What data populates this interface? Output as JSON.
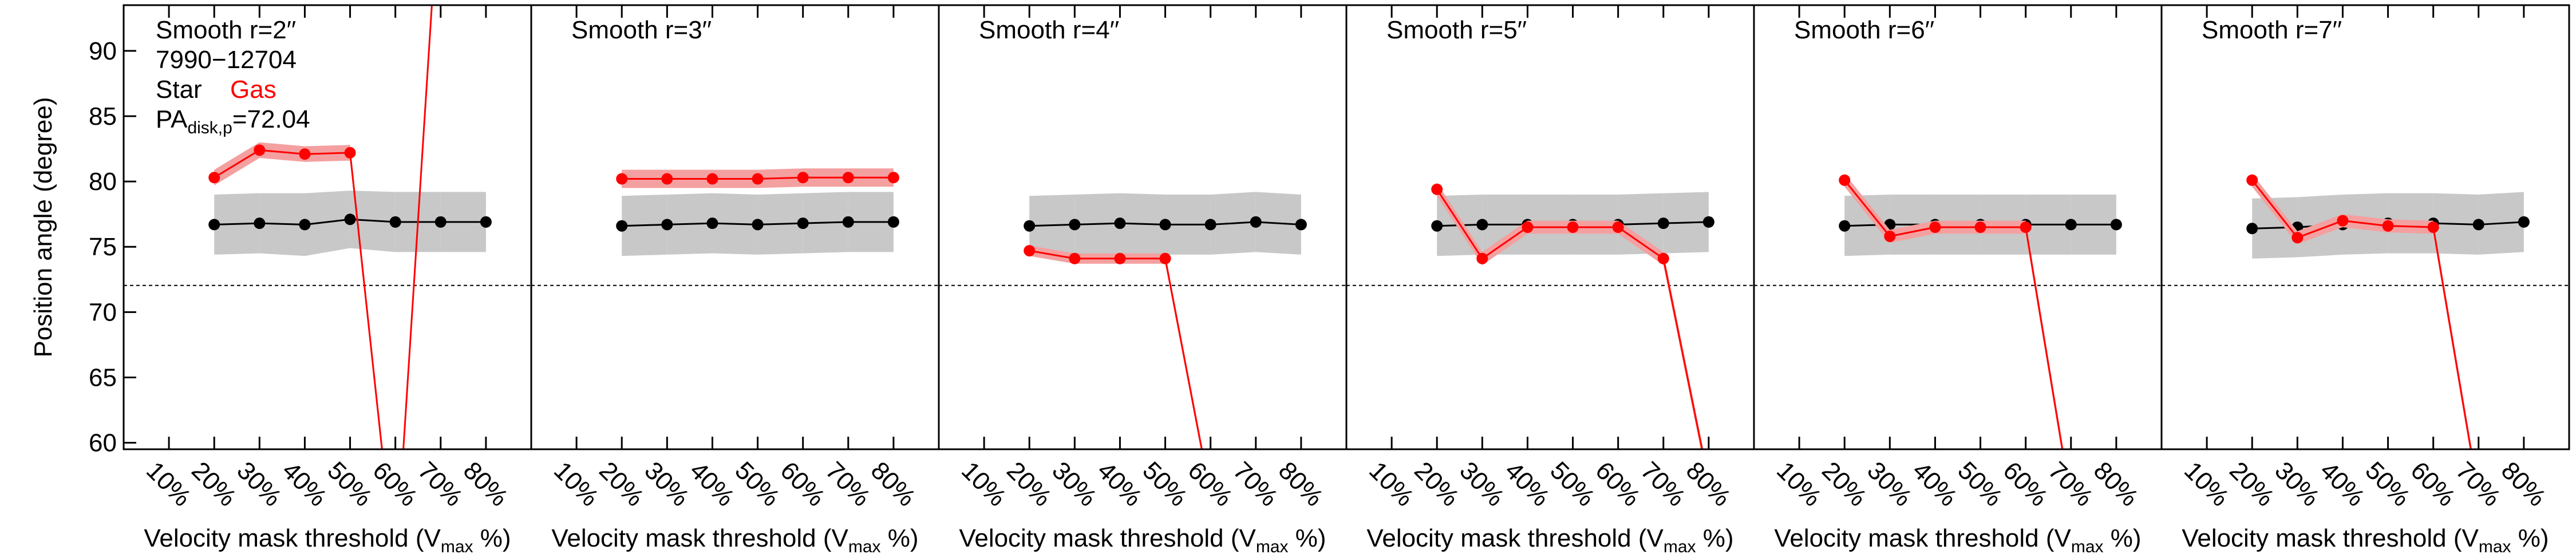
{
  "chart_data": [
    {
      "type": "line",
      "title": "Smooth r=2′′",
      "ylabel": "Position angle (degree)",
      "annotations": [
        "7990−12704"
      ],
      "pa_label": {
        "text": "PA",
        "subscript": "disk,p",
        "value_text": "=72.04"
      },
      "reference_line": 72.04,
      "xlabel": {
        "text": "Velocity mask threshold (V",
        "subscript": "max",
        "suffix": " %)"
      },
      "x": [
        20,
        30,
        40,
        50,
        60,
        70,
        80
      ],
      "series": [
        {
          "name": "Star",
          "color": "#000000",
          "band_color": "#c8c8c8",
          "values": [
            76.7,
            76.8,
            76.7,
            77.1,
            76.9,
            76.9,
            76.9
          ],
          "error": [
            2.3,
            2.3,
            2.4,
            2.2,
            2.3,
            2.3,
            2.3
          ]
        },
        {
          "name": "Gas",
          "color": "#ff0000",
          "band_color": "#f4a0a0",
          "values": [
            80.3,
            82.4,
            82.1,
            82.2,
            50,
            104,
            null
          ],
          "error": [
            0.6,
            0.6,
            0.6,
            0.6,
            0.6,
            0.6,
            null
          ]
        }
      ],
      "xlim": [
        0,
        90
      ],
      "ylim": [
        59.5,
        93.5
      ],
      "xticks": [
        {
          "value": 10,
          "label": "10%"
        },
        {
          "value": 20,
          "label": "20%"
        },
        {
          "value": 30,
          "label": "30%"
        },
        {
          "value": 40,
          "label": "40%"
        },
        {
          "value": 50,
          "label": "50%"
        },
        {
          "value": 60,
          "label": "60%"
        },
        {
          "value": 70,
          "label": "70%"
        },
        {
          "value": 80,
          "label": "80%"
        }
      ],
      "yticks": [
        60,
        65,
        70,
        75,
        80,
        85,
        90
      ]
    },
    {
      "type": "line",
      "title": "Smooth r=3′′",
      "reference_line": 72.04,
      "xlabel": {
        "text": "Velocity mask threshold (V",
        "subscript": "max",
        "suffix": " %)"
      },
      "x": [
        20,
        30,
        40,
        50,
        60,
        70,
        80
      ],
      "series": [
        {
          "color": "#000000",
          "band_color": "#c8c8c8",
          "values": [
            76.6,
            76.7,
            76.8,
            76.7,
            76.8,
            76.9,
            76.9
          ],
          "error": [
            2.3,
            2.3,
            2.3,
            2.3,
            2.3,
            2.3,
            2.3
          ]
        },
        {
          "color": "#ff0000",
          "band_color": "#f4a0a0",
          "values": [
            80.2,
            80.2,
            80.2,
            80.2,
            80.3,
            80.3,
            80.3
          ],
          "error": [
            0.7,
            0.7,
            0.7,
            0.7,
            0.7,
            0.7,
            0.7
          ]
        }
      ],
      "xlim": [
        0,
        90
      ],
      "ylim": [
        59.5,
        93.5
      ],
      "xticks": [
        {
          "value": 10,
          "label": "10%"
        },
        {
          "value": 20,
          "label": "20%"
        },
        {
          "value": 30,
          "label": "30%"
        },
        {
          "value": 40,
          "label": "40%"
        },
        {
          "value": 50,
          "label": "50%"
        },
        {
          "value": 60,
          "label": "60%"
        },
        {
          "value": 70,
          "label": "70%"
        },
        {
          "value": 80,
          "label": "80%"
        }
      ]
    },
    {
      "type": "line",
      "title": "Smooth r=4′′",
      "reference_line": 72.04,
      "xlabel": {
        "text": "Velocity mask threshold (V",
        "subscript": "max",
        "suffix": " %)"
      },
      "x": [
        20,
        30,
        40,
        50,
        60,
        70,
        80
      ],
      "series": [
        {
          "color": "#000000",
          "band_color": "#c8c8c8",
          "values": [
            76.6,
            76.7,
            76.8,
            76.7,
            76.7,
            76.9,
            76.7
          ],
          "error": [
            2.3,
            2.3,
            2.3,
            2.3,
            2.3,
            2.3,
            2.3
          ]
        },
        {
          "color": "#ff0000",
          "band_color": "#f4a0a0",
          "values": [
            74.7,
            74.1,
            74.1,
            74.1,
            56,
            null,
            null
          ],
          "error": [
            0.4,
            0.4,
            0.4,
            0.4,
            0.4,
            null,
            null
          ]
        }
      ],
      "xlim": [
        0,
        90
      ],
      "ylim": [
        59.5,
        93.5
      ],
      "xticks": [
        {
          "value": 10,
          "label": "10%"
        },
        {
          "value": 20,
          "label": "20%"
        },
        {
          "value": 30,
          "label": "30%"
        },
        {
          "value": 40,
          "label": "40%"
        },
        {
          "value": 50,
          "label": "50%"
        },
        {
          "value": 60,
          "label": "60%"
        },
        {
          "value": 70,
          "label": "70%"
        },
        {
          "value": 80,
          "label": "80%"
        }
      ]
    },
    {
      "type": "line",
      "title": "Smooth r=5′′",
      "reference_line": 72.04,
      "xlabel": {
        "text": "Velocity mask threshold (V",
        "subscript": "max",
        "suffix": " %)"
      },
      "x": [
        20,
        30,
        40,
        50,
        60,
        70,
        80
      ],
      "series": [
        {
          "color": "#000000",
          "band_color": "#c8c8c8",
          "values": [
            76.6,
            76.7,
            76.7,
            76.7,
            76.7,
            76.8,
            76.9
          ],
          "error": [
            2.3,
            2.3,
            2.3,
            2.3,
            2.3,
            2.3,
            2.3
          ]
        },
        {
          "color": "#ff0000",
          "band_color": "#f4a0a0",
          "values": [
            79.4,
            74.1,
            76.5,
            76.5,
            76.5,
            74.1,
            57
          ],
          "error": [
            0.5,
            0.5,
            0.5,
            0.5,
            0.5,
            0.5,
            0.5
          ]
        }
      ],
      "xlim": [
        0,
        90
      ],
      "ylim": [
        59.5,
        93.5
      ],
      "xticks": [
        {
          "value": 10,
          "label": "10%"
        },
        {
          "value": 20,
          "label": "20%"
        },
        {
          "value": 30,
          "label": "30%"
        },
        {
          "value": 40,
          "label": "40%"
        },
        {
          "value": 50,
          "label": "50%"
        },
        {
          "value": 60,
          "label": "60%"
        },
        {
          "value": 70,
          "label": "70%"
        },
        {
          "value": 80,
          "label": "80%"
        }
      ]
    },
    {
      "type": "line",
      "title": "Smooth r=6′′",
      "reference_line": 72.04,
      "xlabel": {
        "text": "Velocity mask threshold (V",
        "subscript": "max",
        "suffix": " %)"
      },
      "x": [
        20,
        30,
        40,
        50,
        60,
        70,
        80
      ],
      "series": [
        {
          "color": "#000000",
          "band_color": "#c8c8c8",
          "values": [
            76.6,
            76.7,
            76.7,
            76.7,
            76.7,
            76.7,
            76.7
          ],
          "error": [
            2.3,
            2.3,
            2.3,
            2.3,
            2.3,
            2.3,
            2.3
          ]
        },
        {
          "color": "#ff0000",
          "band_color": "#f4a0a0",
          "values": [
            80.1,
            75.8,
            76.5,
            76.5,
            76.5,
            55.5,
            null
          ],
          "error": [
            0.5,
            0.5,
            0.5,
            0.5,
            0.5,
            0.5,
            null
          ]
        }
      ],
      "xlim": [
        0,
        90
      ],
      "ylim": [
        59.5,
        93.5
      ],
      "xticks": [
        {
          "value": 10,
          "label": "10%"
        },
        {
          "value": 20,
          "label": "20%"
        },
        {
          "value": 30,
          "label": "30%"
        },
        {
          "value": 40,
          "label": "40%"
        },
        {
          "value": 50,
          "label": "50%"
        },
        {
          "value": 60,
          "label": "60%"
        },
        {
          "value": 70,
          "label": "70%"
        },
        {
          "value": 80,
          "label": "80%"
        }
      ]
    },
    {
      "type": "line",
      "title": "Smooth r=7′′",
      "reference_line": 72.04,
      "xlabel": {
        "text": "Velocity mask threshold (V",
        "subscript": "max",
        "suffix": " %)"
      },
      "x": [
        20,
        30,
        40,
        50,
        60,
        70,
        80
      ],
      "series": [
        {
          "color": "#000000",
          "band_color": "#c8c8c8",
          "values": [
            76.4,
            76.5,
            76.7,
            76.8,
            76.8,
            76.7,
            76.9
          ],
          "error": [
            2.3,
            2.3,
            2.3,
            2.3,
            2.3,
            2.3,
            2.3
          ]
        },
        {
          "color": "#ff0000",
          "band_color": "#f4a0a0",
          "values": [
            80.1,
            75.7,
            77.0,
            76.6,
            76.5,
            56,
            null
          ],
          "error": [
            0.5,
            0.5,
            0.5,
            0.5,
            0.5,
            0.5,
            null
          ]
        }
      ],
      "xlim": [
        0,
        90
      ],
      "ylim": [
        59.5,
        93.5
      ],
      "xticks": [
        {
          "value": 10,
          "label": "10%"
        },
        {
          "value": 20,
          "label": "20%"
        },
        {
          "value": 30,
          "label": "30%"
        },
        {
          "value": 40,
          "label": "40%"
        },
        {
          "value": 50,
          "label": "50%"
        },
        {
          "value": 60,
          "label": "60%"
        },
        {
          "value": 70,
          "label": "70%"
        },
        {
          "value": 80,
          "label": "80%"
        }
      ]
    }
  ]
}
